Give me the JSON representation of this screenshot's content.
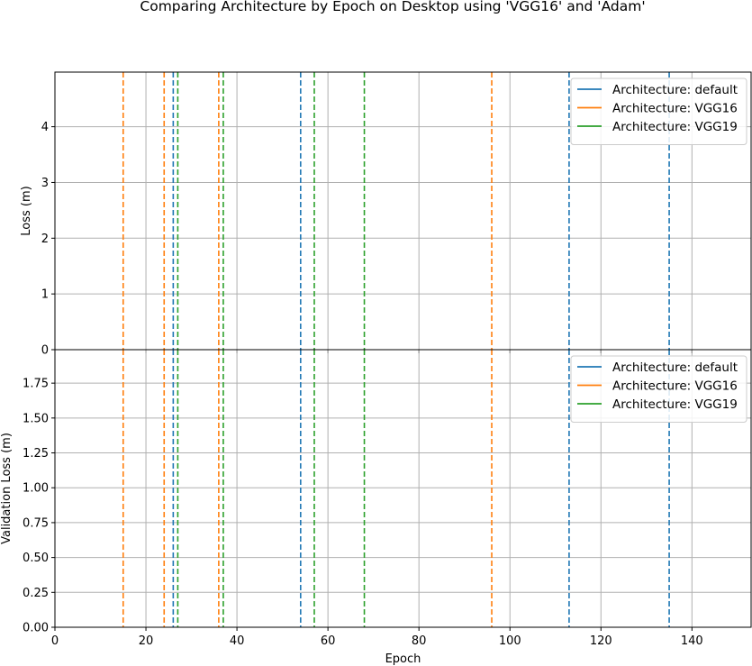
{
  "figure": {
    "title": "Comparing Architecture by Epoch on Desktop using 'VGG16' and 'Adam'"
  },
  "colors": {
    "default": "#1f77b4",
    "VGG16": "#ff7f0e",
    "VGG19": "#2ca02c",
    "grid": "#b0b0b0",
    "axis": "#000000"
  },
  "chart_data": [
    {
      "type": "line",
      "title": "",
      "xlabel": "",
      "ylabel": "Loss (m)",
      "xlim": [
        0,
        153
      ],
      "ylim": [
        0,
        4.98
      ],
      "x_ticks": [
        0,
        20,
        40,
        60,
        80,
        100,
        120,
        140
      ],
      "y_ticks": [
        0,
        1,
        2,
        3,
        4
      ],
      "y_tick_labels": [
        "0",
        "1",
        "2",
        "3",
        "4"
      ],
      "show_x_tick_labels": false,
      "grid": true,
      "legend_position": "top-right",
      "series": [
        {
          "name": "Architecture: default",
          "color": "#1f77b4",
          "style": "dashed vertical lines",
          "x": [
            26,
            54,
            113,
            135
          ]
        },
        {
          "name": "Architecture: VGG16",
          "color": "#ff7f0e",
          "style": "dashed vertical lines",
          "x": [
            15,
            24,
            36,
            96
          ]
        },
        {
          "name": "Architecture: VGG19",
          "color": "#2ca02c",
          "style": "dashed vertical lines",
          "x": [
            27,
            37,
            57,
            68
          ]
        }
      ]
    },
    {
      "type": "line",
      "title": "",
      "xlabel": "Epoch",
      "ylabel": "Validation Loss (m)",
      "xlim": [
        0,
        153
      ],
      "ylim": [
        0,
        1.99
      ],
      "x_ticks": [
        0,
        20,
        40,
        60,
        80,
        100,
        120,
        140
      ],
      "x_tick_labels": [
        "0",
        "20",
        "40",
        "60",
        "80",
        "100",
        "120",
        "140"
      ],
      "y_ticks": [
        0,
        0.25,
        0.5,
        0.75,
        1.0,
        1.25,
        1.5,
        1.75
      ],
      "y_tick_labels": [
        "0.00",
        "0.25",
        "0.50",
        "0.75",
        "1.00",
        "1.25",
        "1.50",
        "1.75"
      ],
      "show_x_tick_labels": true,
      "grid": true,
      "legend_position": "top-right",
      "series": [
        {
          "name": "Architecture: default",
          "color": "#1f77b4",
          "style": "dashed vertical lines",
          "x": [
            26,
            54,
            113,
            135
          ]
        },
        {
          "name": "Architecture: VGG16",
          "color": "#ff7f0e",
          "style": "dashed vertical lines",
          "x": [
            15,
            24,
            36,
            96
          ]
        },
        {
          "name": "Architecture: VGG19",
          "color": "#2ca02c",
          "style": "dashed vertical lines",
          "x": [
            27,
            37,
            57,
            68
          ]
        }
      ]
    }
  ]
}
